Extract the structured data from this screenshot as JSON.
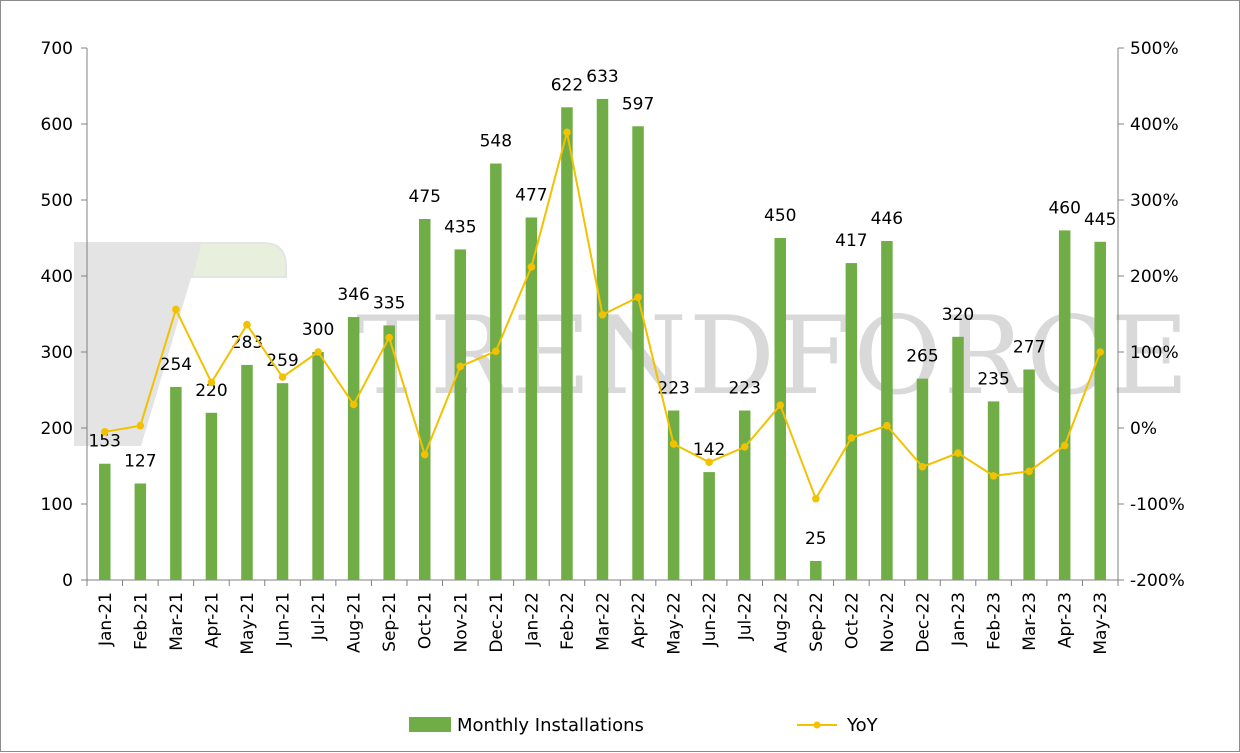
{
  "chart_data": {
    "type": "bar",
    "title": "",
    "categories": [
      "Jan-21",
      "Feb-21",
      "Mar-21",
      "Apr-21",
      "May-21",
      "Jun-21",
      "Jul-21",
      "Aug-21",
      "Sep-21",
      "Oct-21",
      "Nov-21",
      "Dec-21",
      "Jan-22",
      "Feb-22",
      "Mar-22",
      "Apr-22",
      "May-22",
      "Jun-22",
      "Jul-22",
      "Aug-22",
      "Sep-22",
      "Oct-22",
      "Nov-22",
      "Dec-22",
      "Jan-23",
      "Feb-23",
      "Mar-23",
      "Apr-23",
      "May-23"
    ],
    "series": [
      {
        "name": "Monthly Installations",
        "type": "bar",
        "axis": "left",
        "color": "#70ad47",
        "values": [
          153,
          127,
          254,
          220,
          283,
          259,
          300,
          346,
          335,
          475,
          435,
          548,
          477,
          622,
          633,
          597,
          223,
          142,
          223,
          450,
          25,
          417,
          446,
          265,
          320,
          235,
          277,
          460,
          445
        ]
      },
      {
        "name": "YoY",
        "type": "line",
        "axis": "right",
        "color": "#f2c100",
        "values": [
          -5,
          3,
          156,
          60,
          136,
          67,
          100,
          31,
          119,
          -35,
          81,
          101,
          212,
          389,
          149,
          172,
          -21,
          -45,
          -25,
          30,
          -93,
          -13,
          3,
          -51,
          -33,
          -63,
          -57,
          -23,
          100
        ]
      }
    ],
    "y_left": {
      "min": 0,
      "max": 700,
      "ticks": [
        0,
        100,
        200,
        300,
        400,
        500,
        600,
        700
      ],
      "tick_labels": [
        "0",
        "100",
        "200",
        "300",
        "400",
        "500",
        "600",
        "700"
      ]
    },
    "y_right": {
      "min": -200,
      "max": 500,
      "ticks": [
        -200,
        -100,
        0,
        100,
        200,
        300,
        400,
        500
      ],
      "tick_labels": [
        "-200%",
        "-100%",
        "0%",
        "100%",
        "200%",
        "300%",
        "400%",
        "500%"
      ]
    },
    "grid": false,
    "legend": {
      "position": "bottom",
      "entries": [
        "Monthly Installations",
        "YoY"
      ]
    },
    "watermark": "TRENDFORCE"
  }
}
